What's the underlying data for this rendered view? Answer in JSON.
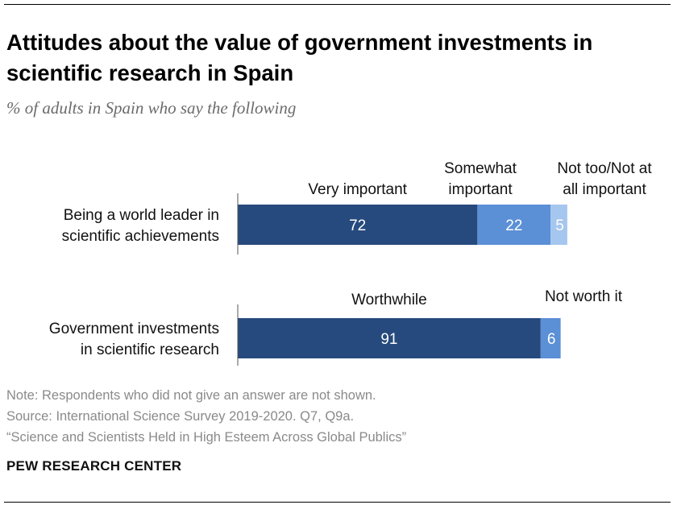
{
  "title": "Attitudes about the value of government investments in scientific research in Spain",
  "subtitle": "% of adults in Spain who say the following",
  "notes": {
    "note": "Note: Respondents who did not give an answer are not shown.",
    "source": "Source: International Science Survey 2019-2020. Q7, Q9a.",
    "report": "“Science and Scientists Held in High Esteem Across Global Publics”"
  },
  "logo": "PEW RESEARCH CENTER",
  "chart_data": {
    "type": "bar",
    "orientation": "horizontal",
    "stacked": true,
    "xlim": [
      0,
      100
    ],
    "grid": false,
    "rows": [
      {
        "category": [
          "Being a world leader in",
          "scientific achievements"
        ],
        "segments": [
          {
            "name": [
              "Very important"
            ],
            "value": 72,
            "color": "#264a7d"
          },
          {
            "name": [
              "Somewhat",
              "important"
            ],
            "value": 22,
            "color": "#5b8fd6"
          },
          {
            "name": [
              "Not too/Not at",
              "all important"
            ],
            "value": 5,
            "color": "#a5c6ee"
          }
        ]
      },
      {
        "category": [
          "Government investments",
          "in scientific research"
        ],
        "segments": [
          {
            "name": [
              "Worthwhile"
            ],
            "value": 91,
            "color": "#264a7d"
          },
          {
            "name": [
              "Not worth it"
            ],
            "value": 6,
            "color": "#5b8fd6"
          }
        ]
      }
    ]
  }
}
